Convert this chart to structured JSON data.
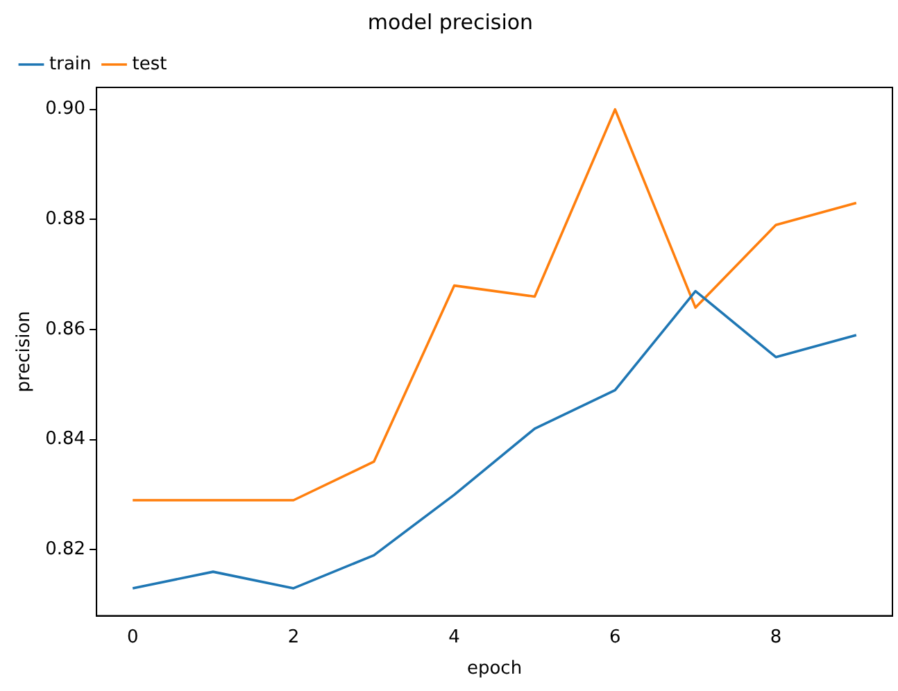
{
  "chart_data": {
    "type": "line",
    "title": "model precision",
    "xlabel": "epoch",
    "ylabel": "precision",
    "x": [
      0,
      1,
      2,
      3,
      4,
      5,
      6,
      7,
      8,
      9
    ],
    "series": [
      {
        "name": "train",
        "color": "#1f77b4",
        "values": [
          0.813,
          0.816,
          0.813,
          0.819,
          0.83,
          0.842,
          0.849,
          0.867,
          0.855,
          0.859
        ]
      },
      {
        "name": "test",
        "color": "#ff7f0e",
        "values": [
          0.829,
          0.829,
          0.829,
          0.836,
          0.868,
          0.866,
          0.9,
          0.864,
          0.879,
          0.883
        ]
      }
    ],
    "xlim": [
      -0.45,
      9.45
    ],
    "xticks": [
      0,
      2,
      4,
      6,
      8
    ],
    "ylim": [
      0.808,
      0.904
    ],
    "yticks": [
      0.82,
      0.84,
      0.86,
      0.88,
      {
        "value": 0.9,
        "label": "0.90"
      }
    ],
    "grid": false,
    "legend": "top left",
    "marker": "none",
    "line_style": "solid"
  }
}
